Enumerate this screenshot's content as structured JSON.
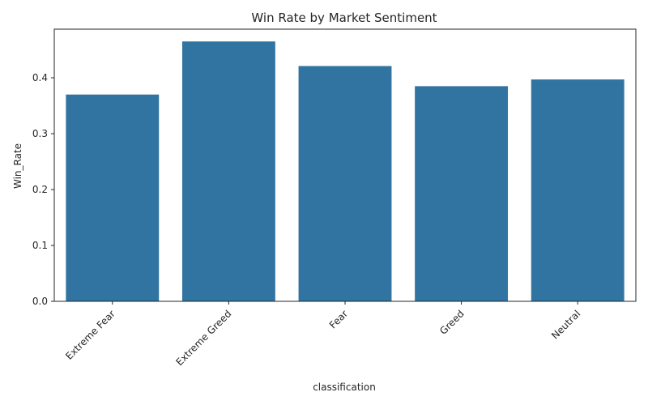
{
  "chart_data": {
    "type": "bar",
    "title": "Win Rate by Market Sentiment",
    "xlabel": "classification",
    "ylabel": "Win_Rate",
    "categories": [
      "Extreme Fear",
      "Extreme Greed",
      "Fear",
      "Greed",
      "Neutral"
    ],
    "values": [
      0.37,
      0.465,
      0.421,
      0.385,
      0.397
    ],
    "ylim": [
      0,
      0.487
    ],
    "yticks": [
      "0.0",
      "0.1",
      "0.2",
      "0.3",
      "0.4"
    ],
    "bar_color": "#3274a1",
    "grid": false,
    "legend": false
  }
}
